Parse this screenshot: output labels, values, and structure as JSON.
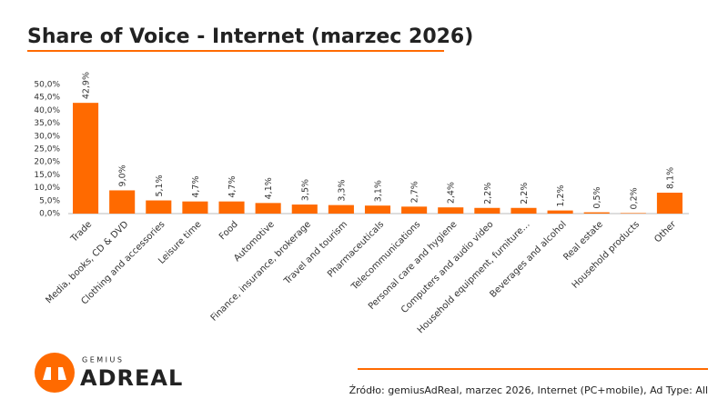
{
  "chart_data": {
    "type": "bar",
    "title": "Share of Voice - Internet (marzec 2026)",
    "categories": [
      "Trade",
      "Media, books, CD & DVD",
      "Clothing and accessories",
      "Leisure time",
      "Food",
      "Automotive",
      "Finance, insurance, brokerage",
      "Travel and tourism",
      "Pharmaceuticals",
      "Telecommunications",
      "Personal care and hygiene",
      "Computers and audio video",
      "Household equipment, furniture…",
      "Beverages and alcohol",
      "Real estate",
      "Household products",
      "Other"
    ],
    "values": [
      42.9,
      9.0,
      5.1,
      4.7,
      4.7,
      4.1,
      3.5,
      3.3,
      3.1,
      2.7,
      2.4,
      2.2,
      2.2,
      1.2,
      0.5,
      0.2,
      8.1
    ],
    "value_labels": [
      "42,9%",
      "9,0%",
      "5,1%",
      "4,7%",
      "4,7%",
      "4,1%",
      "3,5%",
      "3,3%",
      "3,1%",
      "2,7%",
      "2,4%",
      "2,2%",
      "2,2%",
      "1,2%",
      "0,5%",
      "0,2%",
      "8,1%"
    ],
    "color": "#ff6a00",
    "ylim": [
      0,
      50
    ],
    "yticks": [
      {
        "value": 0,
        "label": "0,0%"
      },
      {
        "value": 5,
        "label": "5,0%"
      },
      {
        "value": 10,
        "label": "10,0%"
      },
      {
        "value": 15,
        "label": "15,0%"
      },
      {
        "value": 20,
        "label": "20,0%"
      },
      {
        "value": 25,
        "label": "25,0%"
      },
      {
        "value": 30,
        "label": "30,0%"
      },
      {
        "value": 35,
        "label": "35,0%"
      },
      {
        "value": 40,
        "label": "40,0%"
      },
      {
        "value": 45,
        "label": "45,0%"
      },
      {
        "value": 50,
        "label": "50,0%"
      }
    ],
    "grid": false,
    "source": "Źródło: gemiusAdReal, marzec 2026, Internet (PC+mobile), Ad Type: All"
  },
  "logo": {
    "small": "GEMIUS",
    "large": "ADREAL"
  }
}
